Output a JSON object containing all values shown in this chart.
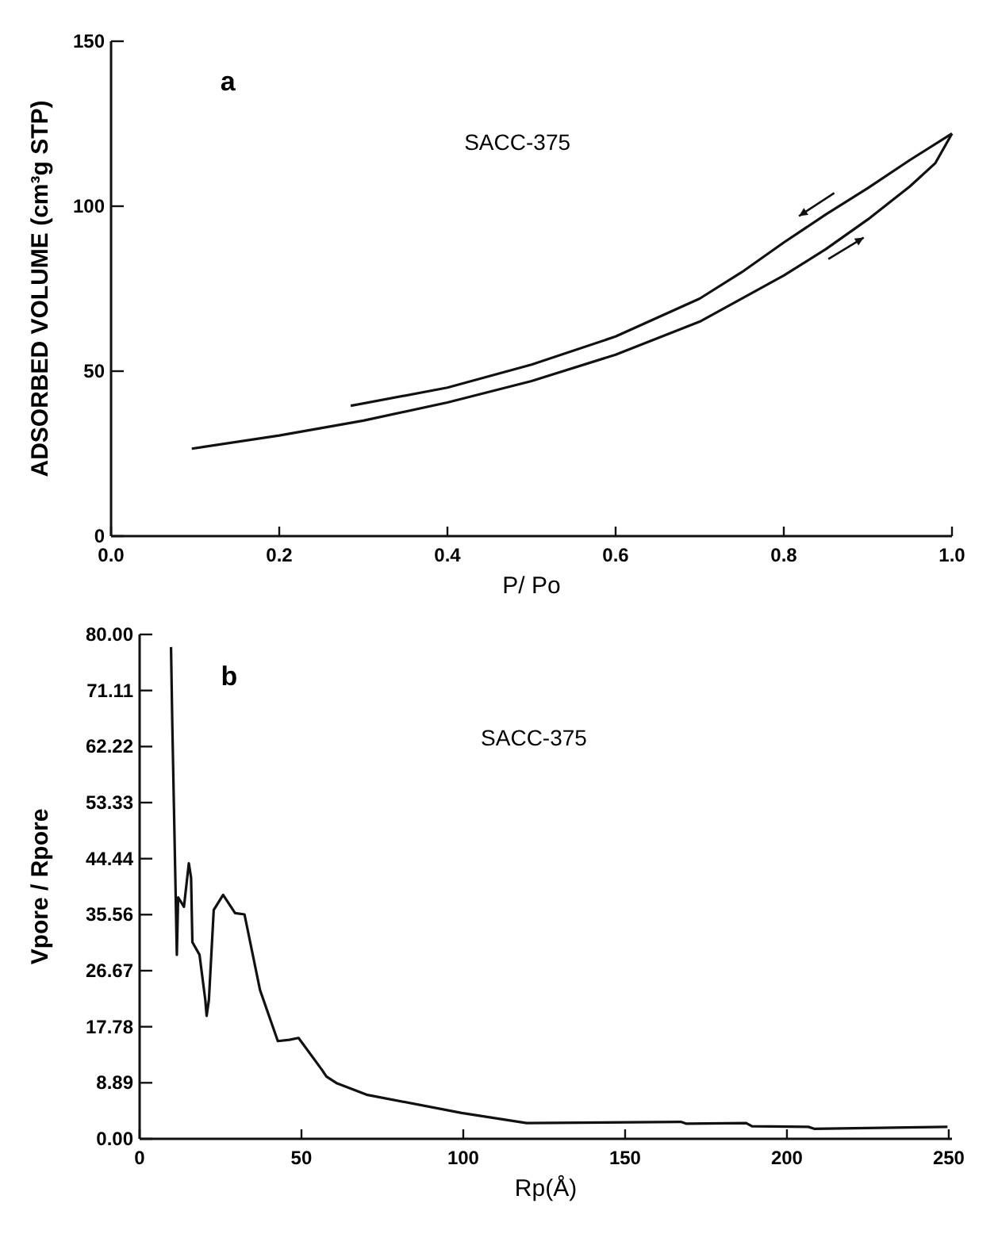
{
  "chart_data": [
    {
      "type": "line",
      "xlabel": "P/ Po",
      "ylabel": "ADSORBED VOLUME (cm³g STP)",
      "xlim": [
        0,
        1
      ],
      "ylim": [
        0,
        150
      ],
      "xticks": [
        {
          "value": 0,
          "label": "0.0"
        },
        {
          "value": 0.2,
          "label": "0.2"
        },
        {
          "value": 0.4,
          "label": "0.4"
        },
        {
          "value": 0.6,
          "label": "0.6"
        },
        {
          "value": 0.8,
          "label": "0.8"
        },
        {
          "value": 1,
          "label": "1.0"
        }
      ],
      "yticks": [
        0,
        50,
        100,
        150
      ],
      "grid": false,
      "marker": "none",
      "line_style": "solid",
      "annotations": [
        "a",
        "SACC-375"
      ],
      "series": [
        {
          "color": "#111111",
          "x": [
            0.096,
            0.2,
            0.3,
            0.4,
            0.5,
            0.6,
            0.7,
            0.8,
            0.85,
            0.9,
            0.95,
            0.98,
            1.0
          ],
          "values": [
            26.5,
            30.5,
            35,
            40.5,
            47,
            55,
            65,
            79,
            87,
            96,
            106,
            113,
            122
          ]
        },
        {
          "color": "#111111",
          "x": [
            0.285,
            0.4,
            0.5,
            0.6,
            0.7,
            0.75,
            0.8,
            0.85,
            0.9,
            0.95,
            1.0
          ],
          "values": [
            39.5,
            45,
            52,
            60.5,
            72,
            80,
            89,
            97.5,
            105.5,
            114,
            122
          ]
        }
      ]
    },
    {
      "type": "line",
      "xlabel": "Rp(Å)",
      "ylabel": "Vpore / Rpore",
      "xlim": [
        0,
        251
      ],
      "ylim": [
        0,
        80
      ],
      "xticks": [
        0,
        50,
        100,
        150,
        200,
        250
      ],
      "yticks": [
        {
          "value": 0,
          "label": "0.00"
        },
        {
          "value": 8.89,
          "label": "8.89"
        },
        {
          "value": 17.78,
          "label": "17.78"
        },
        {
          "value": 26.67,
          "label": "26.67"
        },
        {
          "value": 35.56,
          "label": "35.56"
        },
        {
          "value": 44.44,
          "label": "44.44"
        },
        {
          "value": 53.33,
          "label": "53.33"
        },
        {
          "value": 62.22,
          "label": "62.22"
        },
        {
          "value": 71.11,
          "label": "71.11"
        },
        {
          "value": 80,
          "label": "80.00"
        }
      ],
      "grid": false,
      "marker": "none",
      "line_style": "solid",
      "annotations": [
        "b",
        "SACC-375"
      ],
      "series": [
        {
          "color": "#111111",
          "x": [
            9.7,
            10.1,
            11.5,
            11.9,
            13.7,
            15.2,
            15.9,
            16.3,
            18.5,
            20.3,
            20.7,
            21.4,
            22.9,
            25.8,
            29.5,
            32.4,
            37.2,
            42.7,
            46.3,
            49.1,
            56.4,
            57.7,
            61,
            70.1,
            99.5,
            119.6,
            167.2,
            169,
            187.4,
            189.2,
            206.6,
            208.4,
            249.6
          ],
          "values": [
            78,
            65.7,
            29.2,
            38.3,
            36.8,
            43.7,
            41.4,
            31.2,
            29.2,
            22,
            19.5,
            22,
            36.3,
            38.7,
            35.8,
            35.6,
            23.6,
            15.5,
            15.7,
            16,
            10.9,
            9.9,
            8.8,
            7,
            4.1,
            2.5,
            2.7,
            2.4,
            2.5,
            2,
            1.9,
            1.6,
            1.9
          ]
        }
      ]
    }
  ]
}
